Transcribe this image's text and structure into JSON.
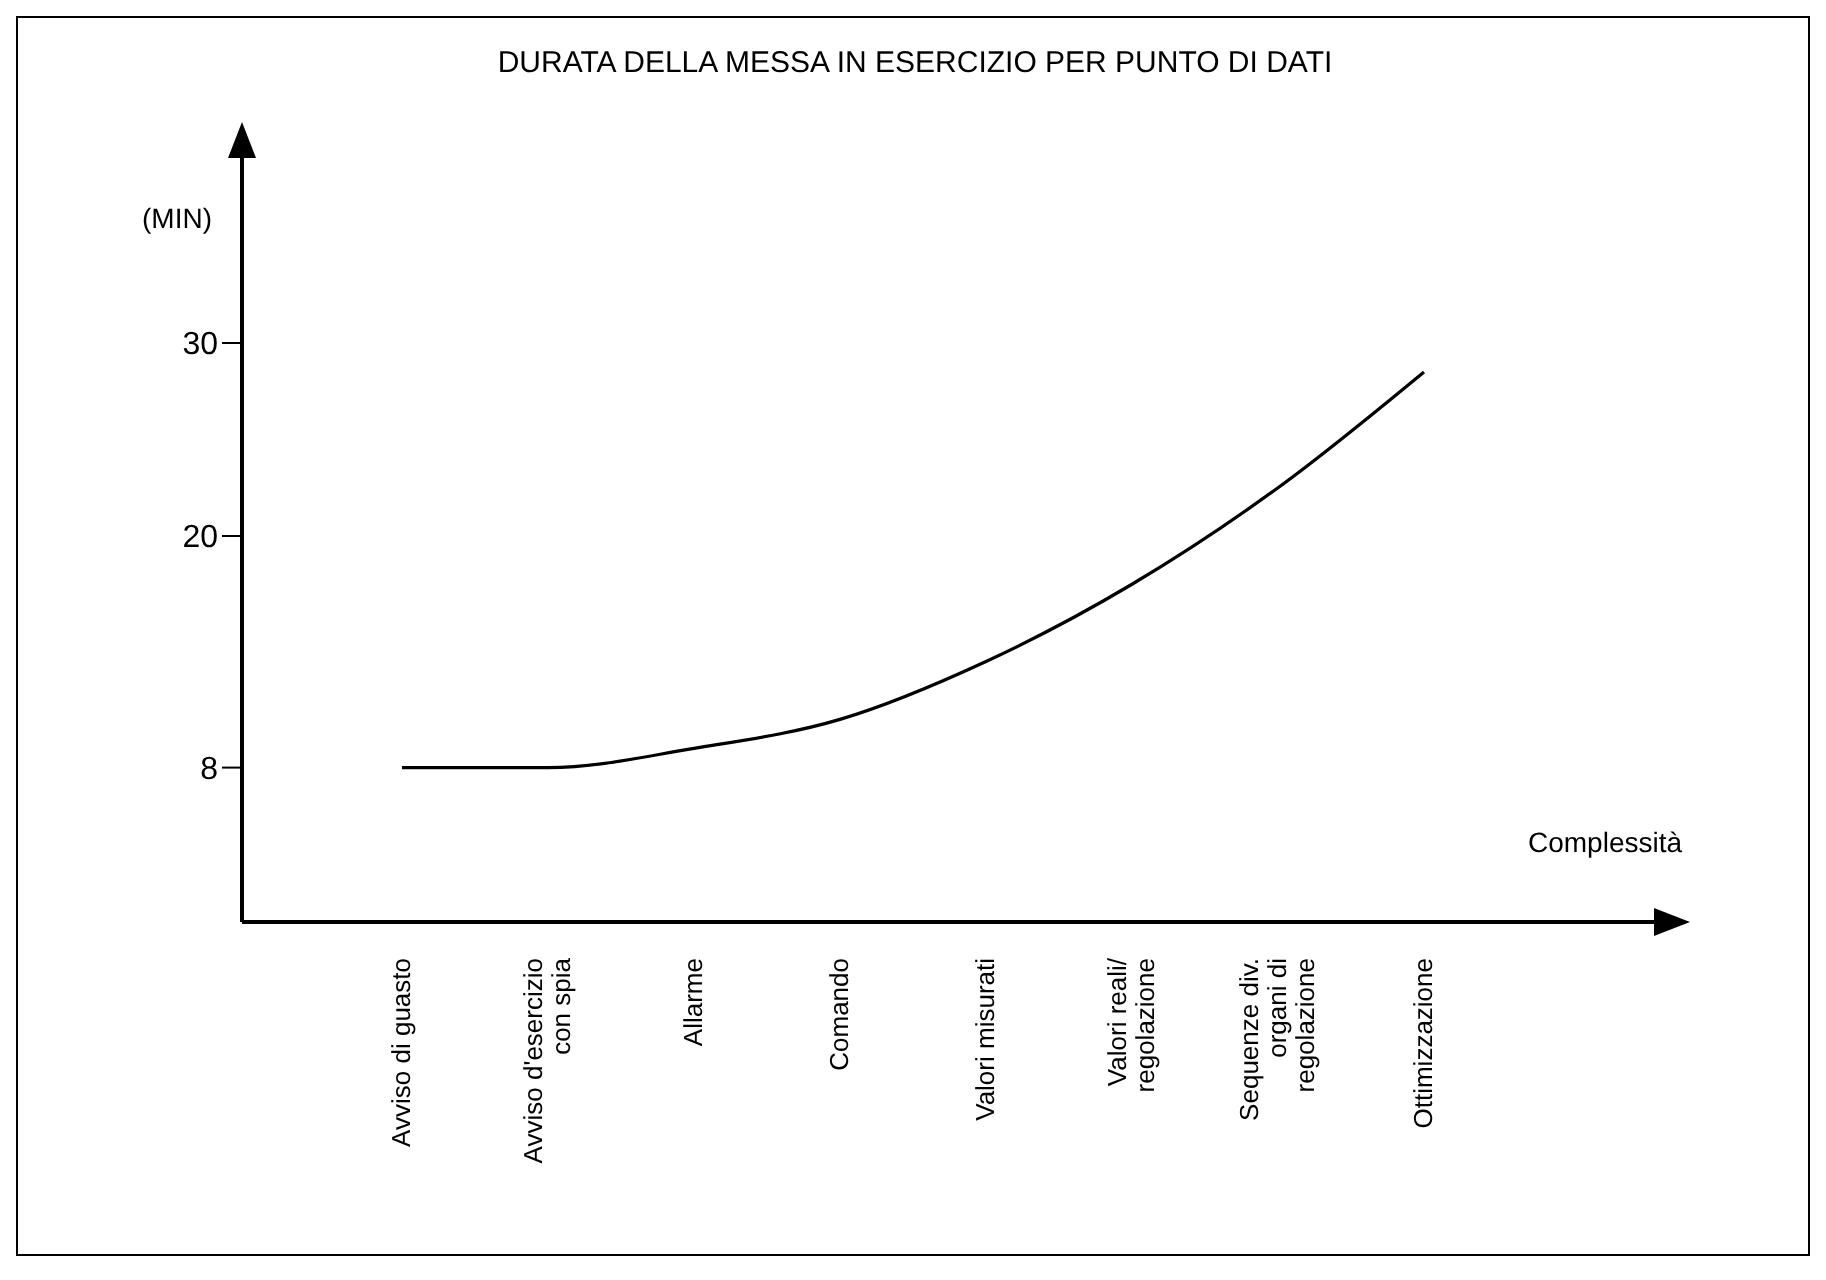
{
  "chart_data": {
    "type": "line",
    "title": "DURATA DELLA MESSA IN ESERCIZIO PER PUNTO DI DATI",
    "ylabel": "(MIN)",
    "xlabel": "Complessità",
    "categories": [
      "Avviso di guasto",
      "Avviso d'esercizio\ncon spia",
      "Allarme",
      "Comando",
      "Valori misurati",
      "Valori reali/\nregolazione",
      "Sequenze div.\norgani di\nregolazione",
      "Ottimizzazione"
    ],
    "series": [
      {
        "color": "#000000",
        "values": [
          8,
          8,
          9,
          10.5,
          13.5,
          17.5,
          22.5,
          28.5
        ]
      }
    ],
    "ylim": [
      0,
      40
    ],
    "yticks": [
      8,
      20,
      30
    ],
    "grid": false,
    "legend": false,
    "marker": "none",
    "line_style": "solid"
  }
}
